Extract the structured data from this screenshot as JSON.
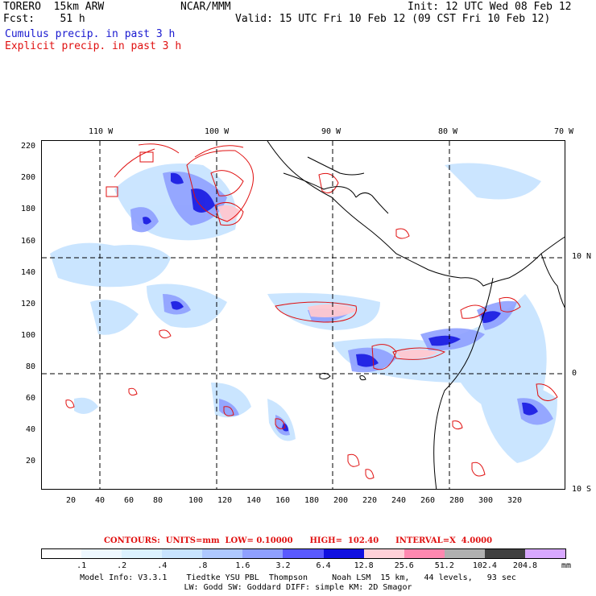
{
  "header": {
    "model": "TORERO  15km ARW",
    "org": "NCAR/MMM",
    "init": "Init: 12 UTC Wed 08 Feb 12",
    "fcst": "Fcst:    51 h",
    "valid": "Valid: 15 UTC Fri 10 Feb 12 (09 CST Fri 10 Feb 12)",
    "cumulus": "Cumulus precip. in past 3 h",
    "explicit": "Explicit precip. in past 3 h"
  },
  "map": {
    "lon_labels": [
      "110 W",
      "100 W",
      "90 W",
      "80 W",
      "70 W"
    ],
    "lat_labels": [
      "10 N",
      "0",
      "10 S"
    ],
    "y_ticks": [
      "220",
      "200",
      "180",
      "160",
      "140",
      "120",
      "100",
      "80",
      "60",
      "40",
      "20"
    ],
    "x_ticks": [
      "20",
      "40",
      "60",
      "80",
      "100",
      "120",
      "140",
      "160",
      "180",
      "200",
      "220",
      "240",
      "260",
      "280",
      "300",
      "320"
    ],
    "colors": {
      "coast": "#000000",
      "grid": "#000000",
      "explicit_contour": "#e01010",
      "fill_light": "#c8e4ff",
      "fill_mid": "#8fa0ff",
      "fill_dark": "#1010e0",
      "fill_pink": "#ffc8d0"
    }
  },
  "contours_text": "CONTOURS:  UNITS=mm  LOW= 0.10000      HIGH=  102.40      INTERVAL=X  4.0000",
  "legend": {
    "labels": [
      ".1",
      ".2",
      ".4",
      ".8",
      "1.6",
      "3.2",
      "6.4",
      "12.8",
      "25.6",
      "51.2",
      "102.4",
      "204.8"
    ],
    "unit": "mm",
    "colors": [
      "#ffffff",
      "#eef8ff",
      "#dcf2ff",
      "#c8e4ff",
      "#aec8ff",
      "#8fa0ff",
      "#5a5aff",
      "#1010e0",
      "#ffd0d8",
      "#ff88b0",
      "#b0b0b0",
      "#404040",
      "#d8a8ff"
    ]
  },
  "model_info": {
    "line1": "Model Info: V3.3.1    Tiedtke YSU PBL  Thompson     Noah LSM  15 km,   44 levels,   93 sec",
    "line2": "LW: Godd SW: Goddard DIFF: simple KM: 2D Smagor"
  }
}
